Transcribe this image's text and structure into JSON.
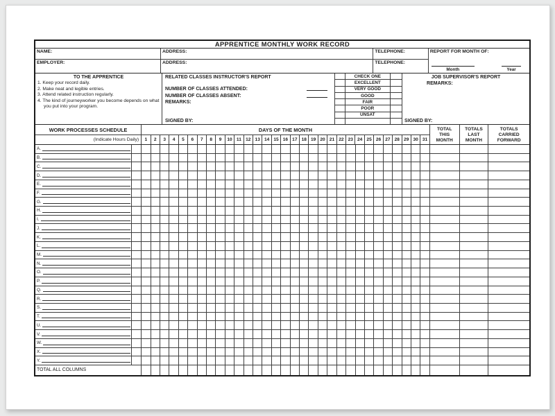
{
  "page": {
    "title": "APPRENTICE MONTHLY WORK RECORD"
  },
  "info": {
    "name_label": "NAME:",
    "address_label_top": "ADDRESS:",
    "telephone_label_top": "TELEPHONE:",
    "report_for_month_label": "REPORT FOR MONTH OF:",
    "employer_label": "EMPLOYER:",
    "address_label_bottom": "ADDRESS:",
    "telephone_label_bottom": "TELEPHONE:",
    "month_label": "Month",
    "year_label": "Year"
  },
  "apprentice_notes": {
    "title": "TO THE APPRENTICE",
    "items": [
      "1. Keep your record daily.",
      "2. Make neat and legible entries.",
      "3. Attend related instruction regularly.",
      "4. The kind of journeyworker you become depends on what you put into your program."
    ]
  },
  "instructor_report": {
    "title": "RELATED CLASSES INSTRUCTOR'S REPORT",
    "classes_attended_label": "NUMBER OF CLASSES ATTENDED:",
    "classes_absent_label": "NUMBER OF CLASSES ABSENT:",
    "remarks_label": "REMARKS:",
    "signed_by_label": "SIGNED BY:"
  },
  "check_one": {
    "title": "CHECK ONE",
    "options": [
      "EXCELLENT",
      "VERY GOOD",
      "GOOD",
      "FAIR",
      "POOR",
      "UNSAT"
    ]
  },
  "supervisor_report": {
    "title": "JOB SUPERVISOR'S REPORT",
    "remarks_label": "REMARKS:",
    "signed_by_label": "SIGNED BY:"
  },
  "schedule": {
    "header": "WORK PROCESSES SCHEDULE",
    "sub_header": "(Indicate Hours Daily)",
    "days_header": "DAYS OF THE MONTH",
    "days": [
      1,
      2,
      3,
      4,
      5,
      6,
      7,
      8,
      9,
      10,
      11,
      12,
      13,
      14,
      15,
      16,
      17,
      18,
      19,
      20,
      21,
      22,
      23,
      24,
      25,
      26,
      27,
      28,
      29,
      30,
      31
    ],
    "total_columns": [
      "TOTAL\nTHIS\nMONTH",
      "TOTALS\nLAST\nMONTH",
      "TOTALS\nCARRIED\nFORWARD"
    ],
    "row_letters": [
      "A.",
      "B.",
      "C.",
      "D.",
      "E.",
      "F.",
      "G.",
      "H.",
      "I.",
      "J.",
      "K.",
      "L.",
      "M.",
      "N.",
      "O.",
      "P.",
      "Q.",
      "R.",
      "S.",
      "T.",
      "U.",
      "V.",
      "W.",
      "X.",
      "Y."
    ],
    "footer_label": "TOTAL ALL COLUMNS"
  },
  "colors": {
    "paper": "#ffffff",
    "background": "#e9eaea",
    "grid_line": "#3d3d3d",
    "text": "#1c1c1c"
  }
}
